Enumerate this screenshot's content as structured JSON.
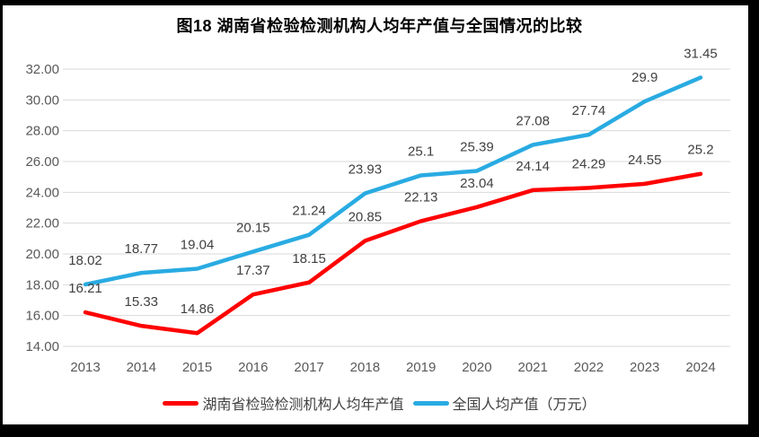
{
  "colors": {
    "frame": "#000000",
    "background": "#ffffff",
    "grid": "#d9d9d9",
    "tick_text": "#595959",
    "label_text": "#404040",
    "title_text": "#000000",
    "hunan_red": "#ff0000",
    "national_blue": "#29abe2"
  },
  "chart_data": {
    "type": "line",
    "title": "图18 湖南省检验检测机构人均年产值与全国情况的比较",
    "categories": [
      "2013",
      "2014",
      "2015",
      "2016",
      "2017",
      "2018",
      "2019",
      "2020",
      "2021",
      "2022",
      "2023",
      "2024"
    ],
    "series": [
      {
        "key": "hunan",
        "name": "湖南省检验检测机构人均年产值",
        "color": "#ff0000",
        "values": [
          16.21,
          15.33,
          14.86,
          17.37,
          18.15,
          20.85,
          22.13,
          23.04,
          24.14,
          24.29,
          24.55,
          25.2
        ]
      },
      {
        "key": "national",
        "name": "全国人均产值（万元）",
        "color": "#29abe2",
        "values": [
          18.02,
          18.77,
          19.04,
          20.15,
          21.24,
          23.93,
          25.1,
          25.39,
          27.08,
          27.74,
          29.9,
          31.45
        ]
      }
    ],
    "xlabel": "",
    "ylabel": "",
    "ylim": [
      14,
      32
    ],
    "ytick_step": 2,
    "ytick_labels": [
      "14.00",
      "16.00",
      "18.00",
      "20.00",
      "22.00",
      "24.00",
      "26.00",
      "28.00",
      "30.00",
      "32.00"
    ],
    "grid": true,
    "data_labels": true,
    "legend_position": "bottom"
  }
}
